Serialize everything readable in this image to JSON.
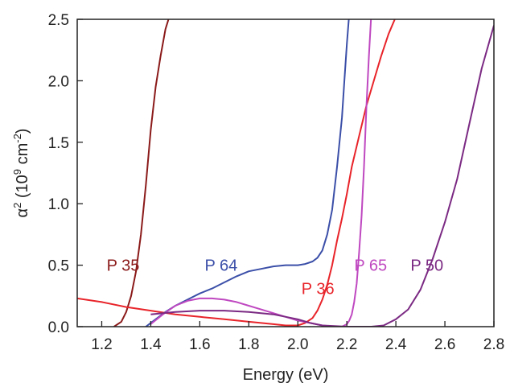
{
  "chart_data": {
    "type": "line",
    "xlabel": "Energy (eV)",
    "ylabel_parts": {
      "alpha": "α",
      "alpha_sup": "2",
      "open": " (10",
      "exp": "9",
      "unit": " cm",
      "unit_sup": "-2",
      "close": ")"
    },
    "xlim": [
      1.1,
      2.8
    ],
    "ylim": [
      0,
      2.5
    ],
    "xticks": [
      1.2,
      1.4,
      1.6,
      1.8,
      2.0,
      2.2,
      2.4,
      2.6,
      2.8
    ],
    "xtick_labels": [
      "1.2",
      "1.4",
      "1.6",
      "1.8",
      "2.0",
      "2.2",
      "2.4",
      "2.6",
      "2.8"
    ],
    "yticks": [
      0,
      0.5,
      1.0,
      1.5,
      2.0,
      2.5
    ],
    "ytick_labels": [
      "0.0",
      "0.5",
      "1.0",
      "1.5",
      "2.0",
      "2.5"
    ],
    "grid": false,
    "series": [
      {
        "name": "P 35",
        "color": "#8b1a1a",
        "label_at": [
          1.22,
          0.5
        ],
        "x": [
          1.25,
          1.28,
          1.3,
          1.32,
          1.34,
          1.36,
          1.38,
          1.4,
          1.42,
          1.44,
          1.46,
          1.48
        ],
        "y": [
          0.0,
          0.04,
          0.12,
          0.25,
          0.45,
          0.75,
          1.15,
          1.6,
          1.95,
          2.2,
          2.42,
          2.55
        ]
      },
      {
        "name": "P 64",
        "color": "#3b4fa8",
        "label_at": [
          1.62,
          0.5
        ],
        "x": [
          1.38,
          1.42,
          1.46,
          1.5,
          1.55,
          1.6,
          1.65,
          1.7,
          1.75,
          1.8,
          1.85,
          1.9,
          1.95,
          2.0,
          2.03,
          2.06,
          2.08,
          2.1,
          2.12,
          2.14,
          2.16,
          2.18,
          2.19,
          2.2,
          2.21
        ],
        "y": [
          0.0,
          0.06,
          0.12,
          0.17,
          0.22,
          0.27,
          0.31,
          0.36,
          0.41,
          0.45,
          0.47,
          0.49,
          0.5,
          0.5,
          0.51,
          0.53,
          0.56,
          0.62,
          0.75,
          0.95,
          1.3,
          1.7,
          2.0,
          2.3,
          2.55
        ]
      },
      {
        "name": "P 36",
        "color": "#e8242a",
        "label_at": [
          2.015,
          0.31
        ],
        "x": [
          1.1,
          1.2,
          1.3,
          1.4,
          1.5,
          1.6,
          1.7,
          1.8,
          1.9,
          1.95,
          2.0,
          2.03,
          2.06,
          2.08,
          2.1,
          2.12,
          2.14,
          2.16,
          2.18,
          2.2,
          2.22,
          2.25,
          2.28,
          2.31,
          2.34,
          2.37,
          2.4
        ],
        "y": [
          0.23,
          0.2,
          0.16,
          0.13,
          0.1,
          0.08,
          0.06,
          0.04,
          0.02,
          0.01,
          0.01,
          0.03,
          0.07,
          0.13,
          0.22,
          0.34,
          0.5,
          0.7,
          0.88,
          1.08,
          1.3,
          1.55,
          1.8,
          2.0,
          2.2,
          2.38,
          2.52
        ]
      },
      {
        "name": "P 65",
        "color": "#bf48c0",
        "label_at": [
          2.23,
          0.5
        ],
        "x": [
          1.4,
          1.45,
          1.5,
          1.55,
          1.6,
          1.65,
          1.7,
          1.75,
          1.8,
          1.85,
          1.9,
          1.95,
          2.0,
          2.05,
          2.1,
          2.15,
          2.18,
          2.2,
          2.21,
          2.22,
          2.23,
          2.24,
          2.25,
          2.26,
          2.27,
          2.28,
          2.29,
          2.3
        ],
        "y": [
          0.02,
          0.1,
          0.17,
          0.21,
          0.23,
          0.23,
          0.22,
          0.2,
          0.17,
          0.14,
          0.11,
          0.08,
          0.05,
          0.03,
          0.01,
          0.0,
          0.0,
          0.02,
          0.05,
          0.1,
          0.2,
          0.35,
          0.6,
          0.9,
          1.3,
          1.8,
          2.2,
          2.55
        ]
      },
      {
        "name": "P 50",
        "color": "#7b2a83",
        "label_at": [
          2.46,
          0.5
        ],
        "x": [
          1.4,
          1.5,
          1.6,
          1.7,
          1.8,
          1.9,
          2.0,
          2.05,
          2.1,
          2.2,
          2.3,
          2.35,
          2.4,
          2.45,
          2.5,
          2.55,
          2.6,
          2.65,
          2.7,
          2.75,
          2.8
        ],
        "y": [
          0.1,
          0.12,
          0.13,
          0.13,
          0.12,
          0.1,
          0.06,
          0.03,
          0.01,
          0.0,
          0.0,
          0.01,
          0.06,
          0.14,
          0.3,
          0.55,
          0.85,
          1.2,
          1.65,
          2.1,
          2.45
        ]
      }
    ]
  }
}
